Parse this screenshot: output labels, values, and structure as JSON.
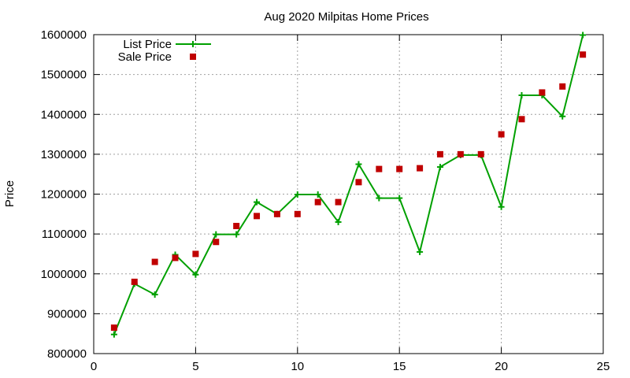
{
  "chart_data": {
    "type": "line",
    "title": "Aug 2020 Milpitas Home Prices",
    "xlabel": "",
    "ylabel": "Price",
    "xlim": [
      0,
      25
    ],
    "ylim": [
      800000,
      1600000
    ],
    "x_ticks": [
      0,
      5,
      10,
      15,
      20,
      25
    ],
    "x_tick_labels": [
      "0",
      "5",
      "10",
      "15",
      "20",
      "25"
    ],
    "y_ticks": [
      800000,
      900000,
      1000000,
      1100000,
      1200000,
      1300000,
      1400000,
      1500000,
      1600000
    ],
    "y_tick_labels": [
      "800000",
      "900000",
      "1000000",
      "1100000",
      "1200000",
      "1300000",
      "1400000",
      "1500000",
      "1600000"
    ],
    "grid": true,
    "legend_position": "top-left",
    "series": [
      {
        "name": "List Price",
        "style": "line-with-plus-markers",
        "color": "#00a000",
        "x": [
          1,
          2,
          3,
          4,
          5,
          6,
          7,
          8,
          9,
          10,
          11,
          12,
          13,
          14,
          15,
          16,
          17,
          18,
          19,
          20,
          21,
          22,
          23,
          24
        ],
        "values": [
          848000,
          975000,
          948000,
          1048000,
          998000,
          1099000,
          1099000,
          1180000,
          1150000,
          1199000,
          1199000,
          1130000,
          1275000,
          1190000,
          1190000,
          1055000,
          1268000,
          1298000,
          1298000,
          1168000,
          1448000,
          1448000,
          1395000,
          1599000
        ]
      },
      {
        "name": "Sale Price",
        "style": "square-markers",
        "color": "#c00000",
        "x": [
          1,
          2,
          3,
          4,
          5,
          6,
          7,
          8,
          9,
          10,
          11,
          12,
          13,
          14,
          15,
          16,
          17,
          18,
          19,
          20,
          21,
          22,
          23,
          24
        ],
        "values": [
          865000,
          980000,
          1030000,
          1040000,
          1050000,
          1080000,
          1120000,
          1145000,
          1150000,
          1150000,
          1180000,
          1180000,
          1230000,
          1263000,
          1263000,
          1265000,
          1300000,
          1300000,
          1300000,
          1350000,
          1388000,
          1455000,
          1470000,
          1550000
        ]
      }
    ]
  }
}
